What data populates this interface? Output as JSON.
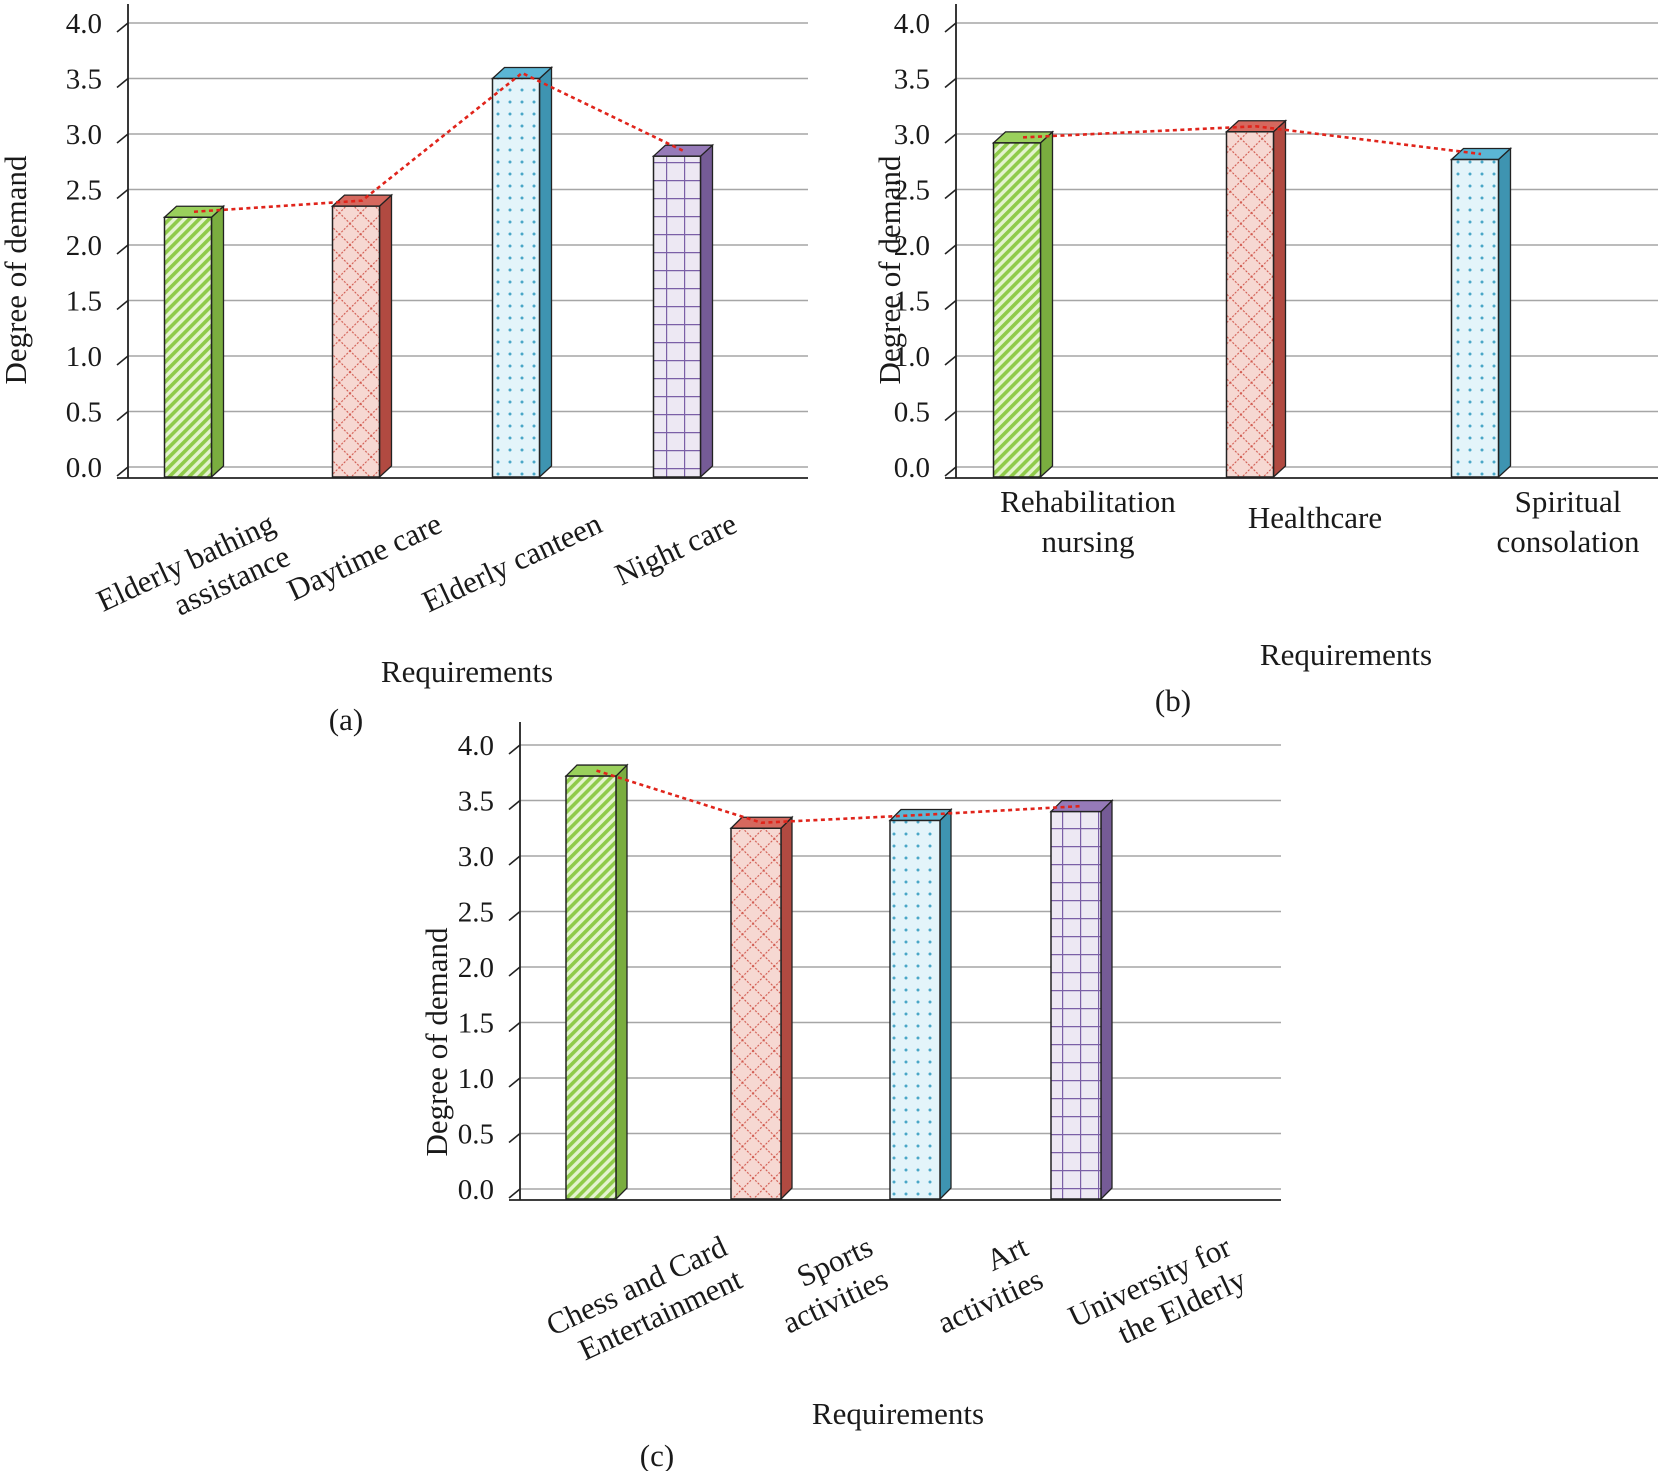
{
  "colors": {
    "green": "#8fcb4a",
    "red": "#d0574c",
    "blue": "#49aed0",
    "purple": "#8a6bb0",
    "trend": "#e0241b",
    "grid": "#a6a6a6",
    "axis": "#222222"
  },
  "chart_data": [
    {
      "type": "bar",
      "panel_label": "(a)",
      "title": "",
      "xlabel": "Requirements",
      "ylabel": "Degree of demand",
      "ylim": [
        0,
        4.0
      ],
      "yticks": [
        "0.0",
        "0.5",
        "1.0",
        "1.5",
        "2.0",
        "2.5",
        "3.0",
        "3.5",
        "4.0"
      ],
      "grid": true,
      "trend_line": "dotted line connecting bar tops",
      "categories": [
        "Elderly bathing assistance",
        "Daytime care",
        "Elderly canteen",
        "Night care"
      ],
      "category_lines": [
        [
          "Elderly bathing",
          "assistance"
        ],
        [
          "Daytime care"
        ],
        [
          "Elderly canteen"
        ],
        [
          "Night care"
        ]
      ],
      "values": [
        2.25,
        2.35,
        3.5,
        2.8
      ],
      "patterns": [
        "diagonal",
        "crosshatch",
        "dots",
        "grid"
      ],
      "bar_colors": [
        "green",
        "red",
        "blue",
        "purple"
      ]
    },
    {
      "type": "bar",
      "panel_label": "(b)",
      "title": "",
      "xlabel": "Requirements",
      "ylabel": "Degree of demand",
      "ylim": [
        0,
        4.0
      ],
      "yticks": [
        "0.0",
        "0.5",
        "1.0",
        "1.5",
        "2.0",
        "2.5",
        "3.0",
        "3.5",
        "4.0"
      ],
      "grid": true,
      "trend_line": "dotted line connecting bar tops",
      "categories": [
        "Rehabilitation nursing",
        "Healthcare",
        "Spiritual consolation"
      ],
      "category_lines": [
        [
          "Rehabilitation",
          "nursing"
        ],
        [
          "Healthcare"
        ],
        [
          "Spiritual",
          "consolation"
        ]
      ],
      "values": [
        2.92,
        3.02,
        2.77
      ],
      "patterns": [
        "diagonal",
        "crosshatch",
        "dots"
      ],
      "bar_colors": [
        "green",
        "red",
        "blue"
      ]
    },
    {
      "type": "bar",
      "panel_label": "(c)",
      "title": "",
      "xlabel": "Requirements",
      "ylabel": "Degree of demand",
      "ylim": [
        0,
        4.0
      ],
      "yticks": [
        "0.0",
        "0.5",
        "1.0",
        "1.5",
        "2.0",
        "2.5",
        "3.0",
        "3.5",
        "4.0"
      ],
      "grid": true,
      "trend_line": "dotted line connecting bar tops",
      "categories": [
        "Chess and Card Entertainment",
        "Sports activities",
        "Art activities",
        "University for the Elderly"
      ],
      "category_lines": [
        [
          "Chess and Card",
          "Entertainment"
        ],
        [
          "Sports",
          "activities"
        ],
        [
          "Art",
          "activities"
        ],
        [
          "University for",
          "the Elderly"
        ]
      ],
      "values": [
        3.72,
        3.25,
        3.32,
        3.4
      ],
      "patterns": [
        "diagonal",
        "crosshatch",
        "dots",
        "grid"
      ],
      "bar_colors": [
        "green",
        "red",
        "blue",
        "purple"
      ]
    }
  ]
}
